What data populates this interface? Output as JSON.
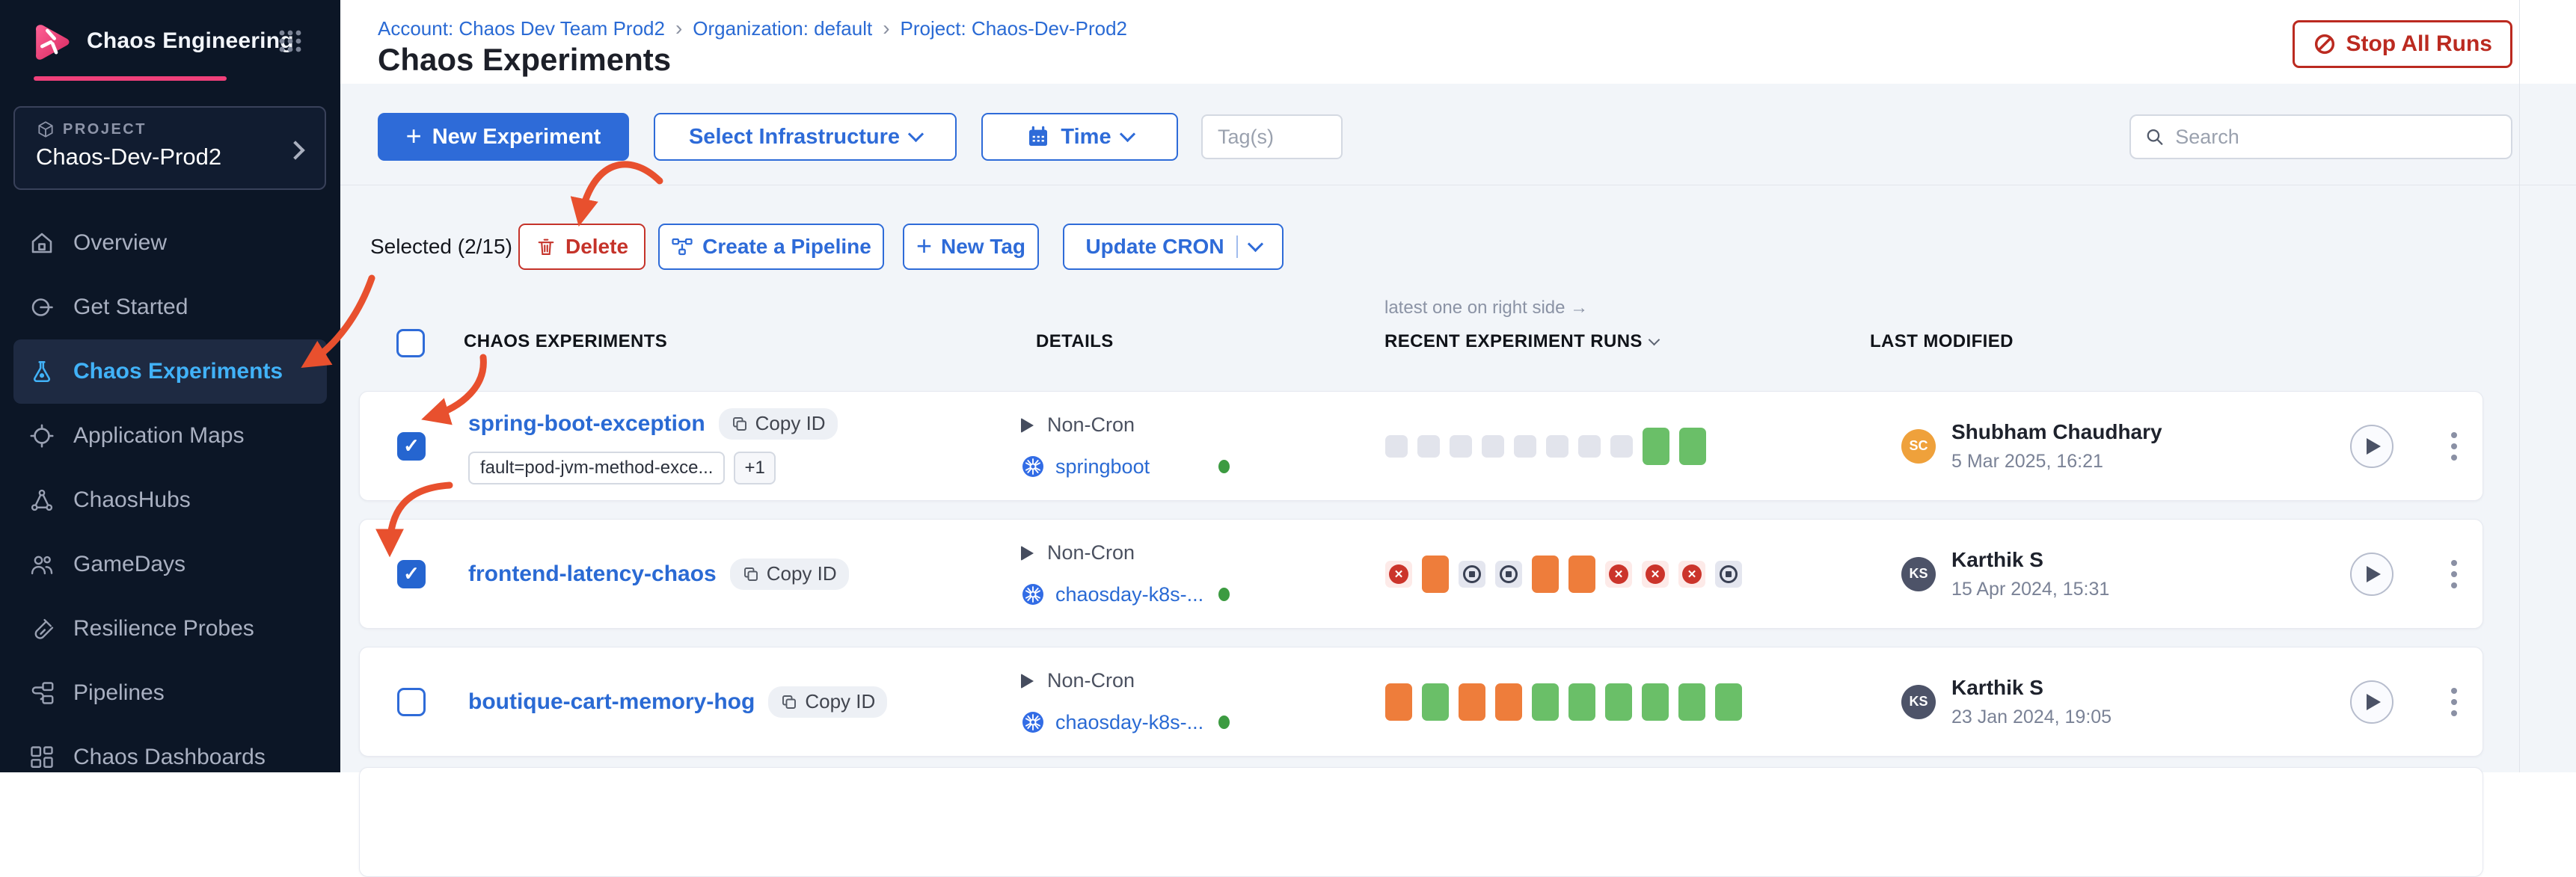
{
  "app": {
    "name": "Chaos Engineering"
  },
  "icons": {
    "breadcrumb_separator": "›",
    "plus": "+",
    "check": "✓",
    "x_mark": "✕"
  },
  "colors": {
    "primary": "#2e6bd8",
    "danger": "#bb2a20",
    "annotation_arrow": "#e8502e",
    "run_success": "#6abf68",
    "run_running": "#ee7d3b",
    "run_failed": "#cb342b",
    "active_nav": "#41b2f8",
    "module_accent": "#f0407a"
  },
  "sidebar": {
    "project_label": "PROJECT",
    "project_name": "Chaos-Dev-Prod2",
    "items": [
      {
        "label": "Overview",
        "icon": "home",
        "active": false
      },
      {
        "label": "Get Started",
        "icon": "getstarted",
        "active": false
      },
      {
        "label": "Chaos Experiments",
        "icon": "flask",
        "active": true
      },
      {
        "label": "Application Maps",
        "icon": "appmaps",
        "active": false
      },
      {
        "label": "ChaosHubs",
        "icon": "hub",
        "active": false
      },
      {
        "label": "GameDays",
        "icon": "gamedays",
        "active": false
      },
      {
        "label": "Resilience Probes",
        "icon": "probe",
        "active": false
      },
      {
        "label": "Pipelines",
        "icon": "pipeline",
        "active": false
      },
      {
        "label": "Chaos Dashboards",
        "icon": "dashboard",
        "active": false
      }
    ]
  },
  "header": {
    "breadcrumb": [
      "Account: Chaos Dev Team Prod2",
      "Organization: default",
      "Project: Chaos-Dev-Prod2"
    ],
    "title": "Chaos Experiments",
    "stop_all_runs": "Stop All Runs"
  },
  "toolbar": {
    "new_experiment": "New Experiment",
    "select_infrastructure": "Select Infrastructure",
    "time": "Time",
    "tags_placeholder": "Tag(s)",
    "search_placeholder": "Search"
  },
  "selection_bar": {
    "selected_text": "Selected (2/15)",
    "delete": "Delete",
    "create_pipeline": "Create a Pipeline",
    "new_tag": "New Tag",
    "update_cron": "Update CRON"
  },
  "table": {
    "runs_note": "latest one on right side →",
    "columns": {
      "experiments": "CHAOS EXPERIMENTS",
      "details": "DETAILS",
      "runs": "RECENT EXPERIMENT RUNS",
      "last_modified": "LAST MODIFIED"
    },
    "copy_id_label": "Copy ID",
    "rows": [
      {
        "name": "spring-boot-exception",
        "checked": true,
        "tags": [
          "fault=pod-jvm-method-exce...",
          "+1"
        ],
        "cron": "Non-Cron",
        "infrastructure": "springboot",
        "infra_status": "active",
        "runs": [
          "empty",
          "empty",
          "empty",
          "empty",
          "empty",
          "empty",
          "empty",
          "empty",
          "success",
          "success"
        ],
        "modified_by": "Shubham Chaudhary",
        "initials": "SC",
        "avatar_color": "#efa13b",
        "modified_at": "5 Mar 2025, 16:21"
      },
      {
        "name": "frontend-latency-chaos",
        "checked": true,
        "tags": [],
        "cron": "Non-Cron",
        "infrastructure": "chaosday-k8s-...",
        "infra_status": "active",
        "runs": [
          "failed",
          "running",
          "stopped",
          "stopped",
          "running",
          "running",
          "failed",
          "failed",
          "failed",
          "stopped"
        ],
        "modified_by": "Karthik S",
        "initials": "KS",
        "avatar_color": "#4d5368",
        "modified_at": "15 Apr 2024, 15:31"
      },
      {
        "name": "boutique-cart-memory-hog",
        "checked": false,
        "tags": [],
        "cron": "Non-Cron",
        "infrastructure": "chaosday-k8s-...",
        "infra_status": "active",
        "runs": [
          "running",
          "success",
          "running",
          "running",
          "success",
          "success",
          "success",
          "success",
          "success",
          "success"
        ],
        "modified_by": "Karthik S",
        "initials": "KS",
        "avatar_color": "#4d5368",
        "modified_at": "23 Jan 2024, 19:05"
      }
    ]
  }
}
